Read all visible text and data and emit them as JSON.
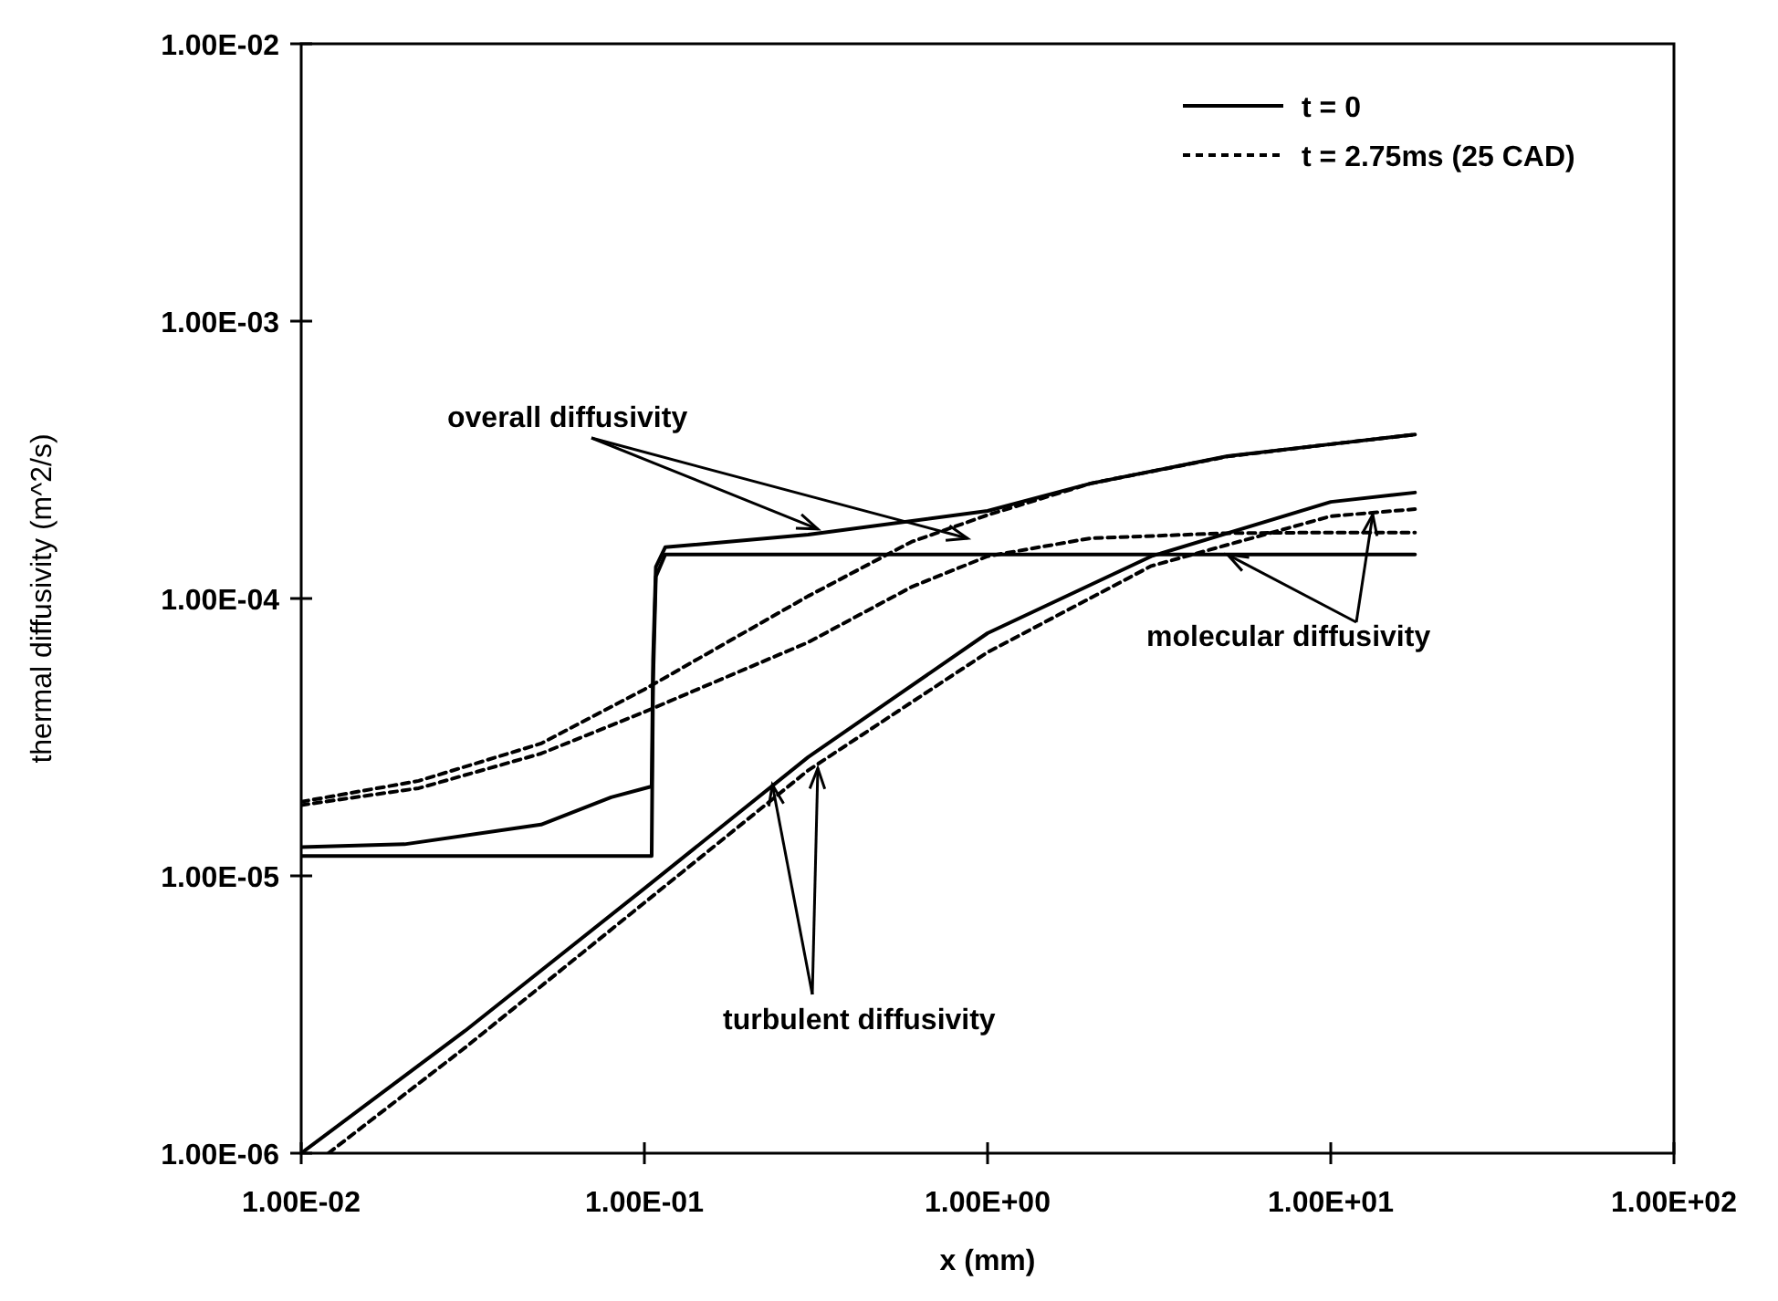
{
  "chart_data": {
    "type": "line",
    "xlabel": "x (mm)",
    "ylabel": "thermal diffusivity (m^2/s)",
    "log": "xy",
    "grid": false,
    "legend": "top right",
    "marker": "none",
    "xlim": [
      0.01,
      100
    ],
    "xticks": [
      {
        "value": 0.01,
        "label": "1.00E-02"
      },
      {
        "value": 0.1,
        "label": "1.00E-01"
      },
      {
        "value": 1,
        "label": "1.00E+00"
      },
      {
        "value": 10,
        "label": "1.00E+01"
      },
      {
        "value": 100,
        "label": "1.00E+02"
      }
    ],
    "ylim": [
      1e-06,
      0.01
    ],
    "yticks": [
      {
        "value": 1e-06,
        "label": "1.00E-06"
      },
      {
        "value": 1e-05,
        "label": "1.00E-05"
      },
      {
        "value": 0.0001,
        "label": "1.00E-04"
      },
      {
        "value": 0.001,
        "label": "1.00E-03"
      },
      {
        "value": 0.01,
        "label": "1.00E-02"
      }
    ],
    "series": [
      {
        "name": "t = 0",
        "color": "#000000",
        "line_style": "solid",
        "x": [
          0.01,
          0.105,
          0.106,
          0.108,
          0.115,
          17.6
        ],
        "values": [
          1.18e-05,
          1.18e-05,
          5e-05,
          0.00012,
          0.000144,
          0.000144
        ]
      },
      {
        "color": "#000000",
        "line_style": "solid",
        "x": [
          0.01,
          0.02,
          0.05,
          0.08,
          0.105,
          0.106,
          0.108,
          0.115,
          0.3,
          1,
          2,
          5,
          10,
          17.6
        ],
        "values": [
          1.27e-05,
          1.3e-05,
          1.53e-05,
          1.92e-05,
          2.1e-05,
          6e-05,
          0.00013,
          0.000153,
          0.00017,
          0.000207,
          0.00026,
          0.000326,
          0.00036,
          0.00039
        ]
      },
      {
        "color": "#000000",
        "line_style": "solid",
        "x": [
          0.01,
          0.03,
          0.1,
          0.3,
          1,
          3,
          10,
          17.6
        ],
        "values": [
          1e-06,
          2.76e-06,
          9e-06,
          2.68e-05,
          7.5e-05,
          0.000142,
          0.000223,
          0.000241
        ]
      },
      {
        "name": "t = 2.75ms (25 CAD)",
        "color": "#000000",
        "line_style": "dashed",
        "x": [
          0.01,
          0.022,
          0.05,
          0.1,
          0.3,
          0.6,
          1,
          2,
          5,
          10,
          17.6
        ],
        "values": [
          1.8e-05,
          2.07e-05,
          2.76e-05,
          3.9e-05,
          6.95e-05,
          0.00011,
          0.000142,
          0.000165,
          0.000172,
          0.000173,
          0.000173
        ]
      },
      {
        "color": "#000000",
        "line_style": "dashed",
        "x": [
          0.01,
          0.022,
          0.05,
          0.1,
          0.3,
          0.6,
          1,
          2,
          5,
          10,
          17.6
        ],
        "values": [
          1.85e-05,
          2.2e-05,
          3e-05,
          4.7e-05,
          0.000102,
          0.00016,
          0.0002,
          0.00026,
          0.000325,
          0.00036,
          0.00039
        ]
      },
      {
        "color": "#000000",
        "line_style": "dashed",
        "x": [
          0.012,
          0.03,
          0.1,
          0.3,
          1,
          3,
          10,
          17.6
        ],
        "values": [
          1e-06,
          2.4e-06,
          8e-06,
          2.4e-05,
          6.4e-05,
          0.000131,
          0.000198,
          0.00021
        ]
      }
    ],
    "annotations": [
      {
        "text": "overall diffusivity",
        "x": 0.32,
        "y": 0.000178
      },
      {
        "text": "molecular diffusivity",
        "x": 5,
        "y": 0.000144
      },
      {
        "text": "turbulent diffusivity",
        "x": 0.236,
        "y": 2.13e-05
      }
    ]
  }
}
